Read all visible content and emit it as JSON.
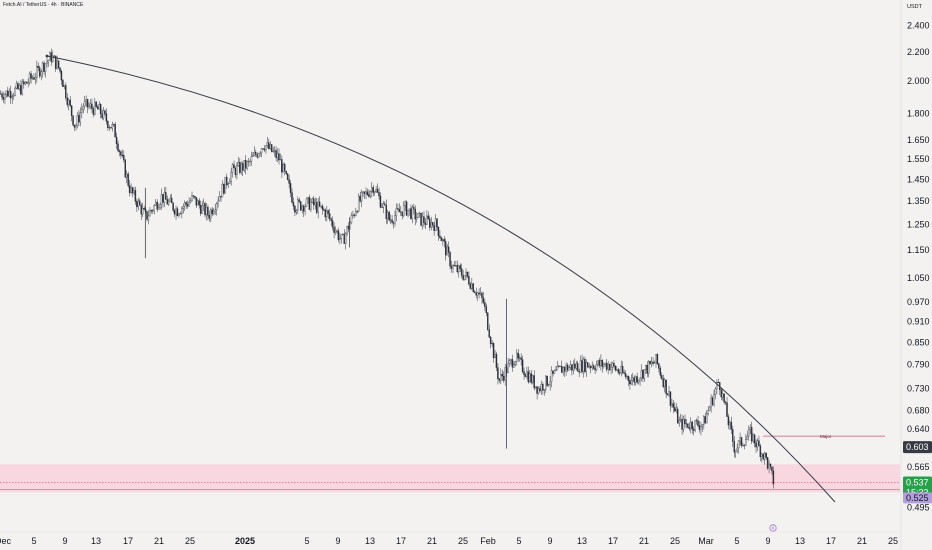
{
  "header": {
    "title": "Fetch.AI / TetherUS · 4h · BINANCE"
  },
  "chart_data": {
    "type": "candlestick",
    "price_scale": {
      "unit": "USDT",
      "log": true,
      "range": [
        0.48,
        2.48
      ],
      "ticks": [
        "2.400",
        "2.200",
        "2.000",
        "1.800",
        "1.650",
        "1.550",
        "1.450",
        "1.350",
        "1.250",
        "1.150",
        "1.050",
        "0.970",
        "0.910",
        "0.850",
        "0.790",
        "0.730",
        "0.680",
        "0.640",
        "0.565",
        "0.495"
      ],
      "current_price": "0.537",
      "countdown": "15:33",
      "marked_prices": [
        {
          "value": "0.603",
          "color": "#363a45"
        },
        {
          "value": "0.525",
          "color": "#b39ddb"
        }
      ]
    },
    "time_ticks": [
      "Dec",
      "5",
      "9",
      "13",
      "17",
      "21",
      "25",
      "2025",
      "5",
      "9",
      "13",
      "17",
      "21",
      "25",
      "Feb",
      "5",
      "9",
      "13",
      "17",
      "21",
      "25",
      "Mar",
      "5",
      "9",
      "13",
      "17",
      "21",
      "25"
    ],
    "candles_approx": [
      {
        "x": "2024-12-01",
        "close": 1.92
      },
      {
        "x": "2024-12-03",
        "close": 1.95
      },
      {
        "x": "2024-12-05",
        "close": 2.05
      },
      {
        "x": "2024-12-07",
        "close": 2.17
      },
      {
        "x": "2024-12-08",
        "close": 2.08
      },
      {
        "x": "2024-12-10",
        "close": 1.72
      },
      {
        "x": "2024-12-11",
        "close": 1.85
      },
      {
        "x": "2024-12-13",
        "close": 1.82
      },
      {
        "x": "2024-12-15",
        "close": 1.7
      },
      {
        "x": "2024-12-17",
        "close": 1.4
      },
      {
        "x": "2024-12-19",
        "close": 1.28
      },
      {
        "x": "2024-12-21",
        "close": 1.37
      },
      {
        "x": "2024-12-23",
        "close": 1.31
      },
      {
        "x": "2024-12-25",
        "close": 1.36
      },
      {
        "x": "2024-12-27",
        "close": 1.29
      },
      {
        "x": "2024-12-30",
        "close": 1.49
      },
      {
        "x": "2025-01-01",
        "close": 1.52
      },
      {
        "x": "2025-01-03",
        "close": 1.63
      },
      {
        "x": "2025-01-05",
        "close": 1.55
      },
      {
        "x": "2025-01-07",
        "close": 1.33
      },
      {
        "x": "2025-01-09",
        "close": 1.34
      },
      {
        "x": "2025-01-11",
        "close": 1.3
      },
      {
        "x": "2025-01-13",
        "close": 1.18
      },
      {
        "x": "2025-01-15",
        "close": 1.34
      },
      {
        "x": "2025-01-17",
        "close": 1.42
      },
      {
        "x": "2025-01-19",
        "close": 1.27
      },
      {
        "x": "2025-01-21",
        "close": 1.32
      },
      {
        "x": "2025-01-23",
        "close": 1.27
      },
      {
        "x": "2025-01-25",
        "close": 1.25
      },
      {
        "x": "2025-01-27",
        "close": 1.09
      },
      {
        "x": "2025-01-29",
        "close": 1.05
      },
      {
        "x": "2025-01-31",
        "close": 0.97
      },
      {
        "x": "2025-02-02",
        "close": 0.75
      },
      {
        "x": "2025-02-04",
        "close": 0.81
      },
      {
        "x": "2025-02-07",
        "close": 0.73
      },
      {
        "x": "2025-02-10",
        "close": 0.78
      },
      {
        "x": "2025-02-13",
        "close": 0.79
      },
      {
        "x": "2025-02-16",
        "close": 0.79
      },
      {
        "x": "2025-02-19",
        "close": 0.75
      },
      {
        "x": "2025-02-22",
        "close": 0.8
      },
      {
        "x": "2025-02-25",
        "close": 0.65
      },
      {
        "x": "2025-02-28",
        "close": 0.65
      },
      {
        "x": "2025-03-02",
        "close": 0.75
      },
      {
        "x": "2025-03-04",
        "close": 0.6
      },
      {
        "x": "2025-03-06",
        "close": 0.63
      },
      {
        "x": "2025-03-08",
        "close": 0.58
      },
      {
        "x": "2025-03-09",
        "close": 0.537
      }
    ],
    "drawings": [
      {
        "type": "curved-trendline",
        "color": "#363a45"
      },
      {
        "type": "support-zone",
        "range": [
          0.52,
          0.57
        ],
        "color": "#f8d7e0"
      },
      {
        "type": "horizontal-ray",
        "value": 0.625,
        "label": "Major",
        "color": "#c45a73"
      },
      {
        "type": "dotted-line",
        "value": 0.537,
        "color": "#c45a73"
      },
      {
        "type": "solid-line",
        "value": 0.525,
        "color": "#9c88d6"
      }
    ]
  }
}
